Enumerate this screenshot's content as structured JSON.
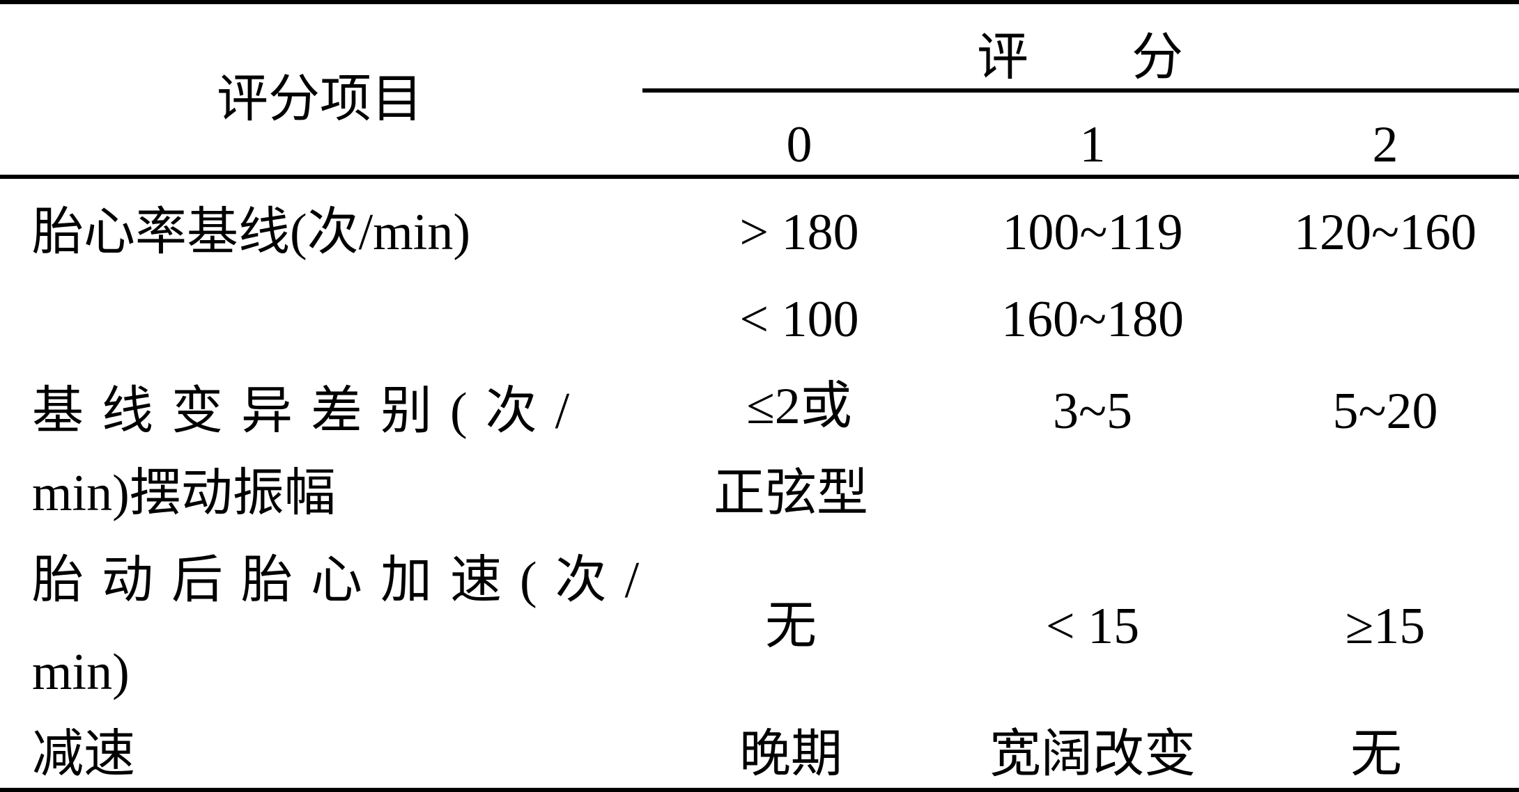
{
  "header": {
    "item_label": "评分项目",
    "score_label": "评　　分",
    "scores": [
      "0",
      "1",
      "2"
    ]
  },
  "rows": [
    {
      "item": [
        "胎心率基线(次/min)"
      ],
      "cells": [
        [
          "> 180",
          "< 100"
        ],
        [
          "100~119",
          "160~180"
        ],
        [
          "120~160"
        ]
      ]
    },
    {
      "item": [
        "基线变异差别(次/",
        "min)摆动振幅"
      ],
      "cells": [
        [
          "≤2或",
          "正弦型"
        ],
        [
          "3~5"
        ],
        [
          "5~20"
        ]
      ]
    },
    {
      "item": [
        "胎动后胎心加速(次/",
        "min)"
      ],
      "cells": [
        [
          "无"
        ],
        [
          "< 15"
        ],
        [
          "≥15"
        ]
      ]
    },
    {
      "item": [
        "减速"
      ],
      "cells": [
        [
          "晚期"
        ],
        [
          "宽阔改变"
        ],
        [
          "无"
        ]
      ]
    }
  ]
}
